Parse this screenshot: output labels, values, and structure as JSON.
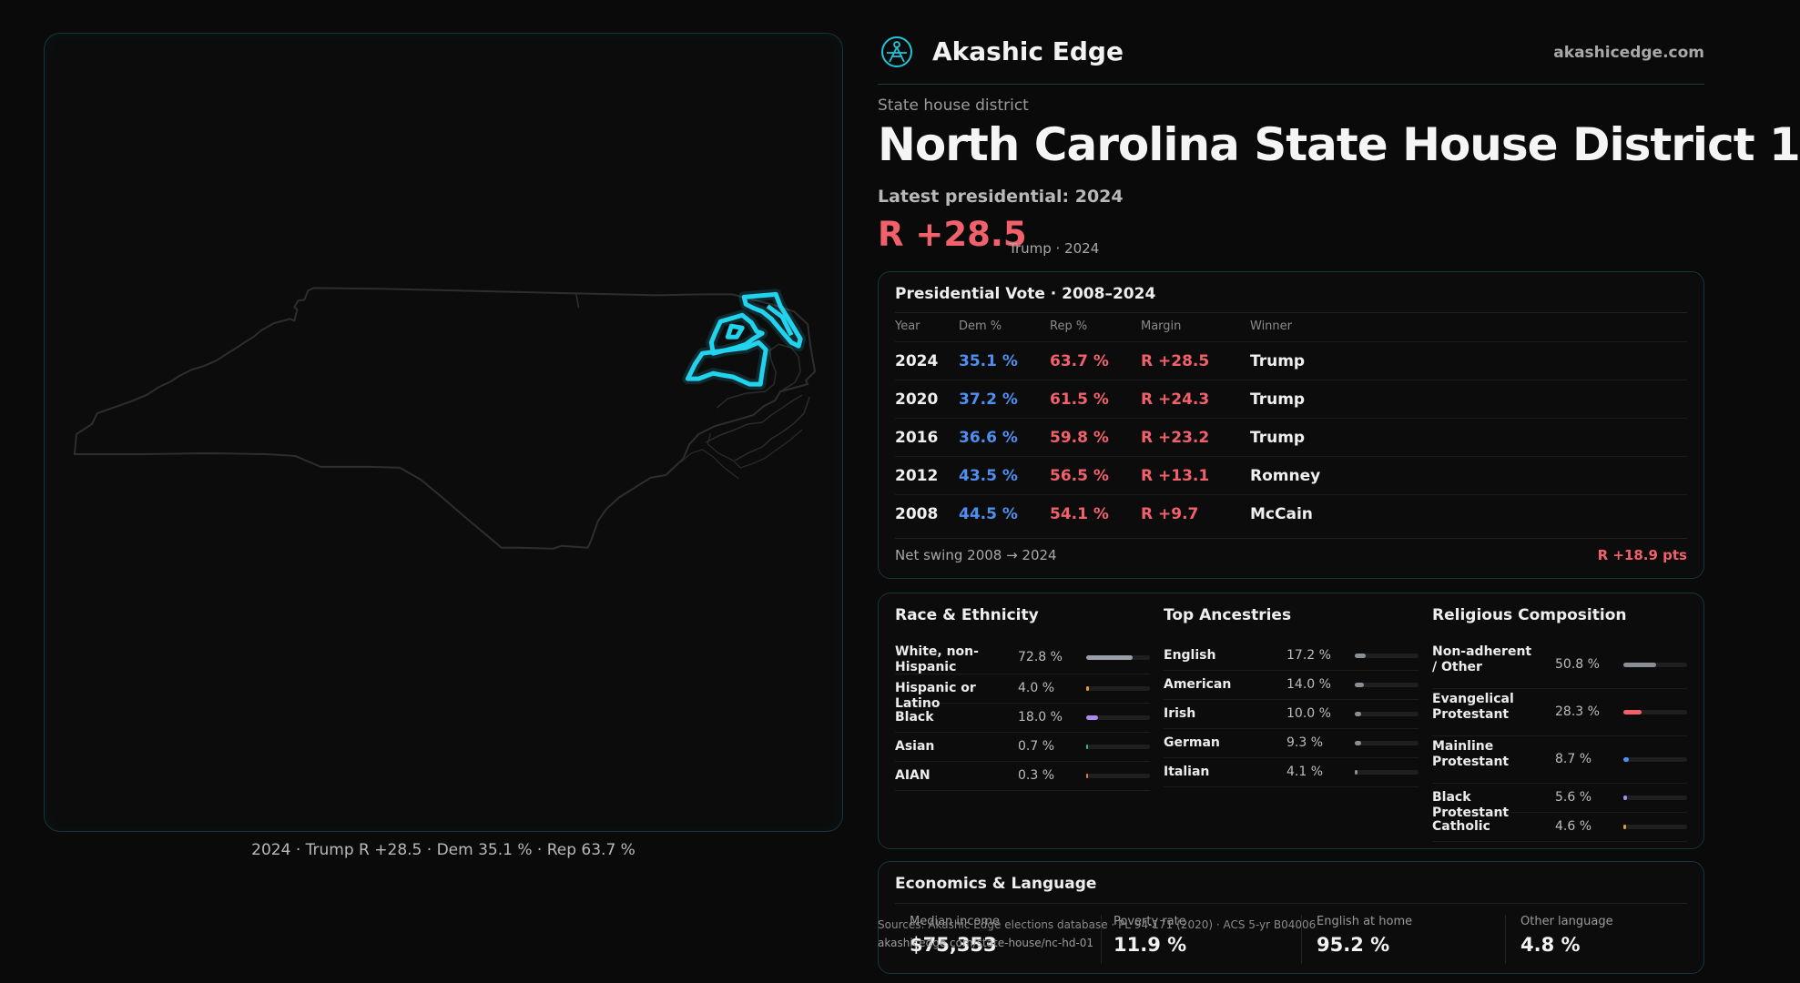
{
  "brand": {
    "name": "Akashic Edge",
    "domain": "akashicedge.com",
    "logo_icon": "akashic-edge-logo-icon"
  },
  "page": {
    "kicker": "State house district",
    "title": "North Carolina State House District 1",
    "latest_label": "Latest presidential: 2024",
    "margin": "R +28.5",
    "margin_sub": "Trump · 2024"
  },
  "map": {
    "caption": "2024 · Trump R +28.5 · Dem 35.1 % · Rep 63.7 %",
    "highlight_color": "#22d3ee"
  },
  "presidential": {
    "title": "Presidential Vote · 2008–2024",
    "headers": {
      "year": "Year",
      "dem": "Dem %",
      "rep": "Rep %",
      "margin": "Margin",
      "winner": "Winner"
    },
    "rows": [
      {
        "year": "2024",
        "dem": "35.1 %",
        "rep": "63.7 %",
        "margin": "R +28.5",
        "winner": "Trump"
      },
      {
        "year": "2020",
        "dem": "37.2 %",
        "rep": "61.5 %",
        "margin": "R +24.3",
        "winner": "Trump"
      },
      {
        "year": "2016",
        "dem": "36.6 %",
        "rep": "59.8 %",
        "margin": "R +23.2",
        "winner": "Trump"
      },
      {
        "year": "2012",
        "dem": "43.5 %",
        "rep": "56.5 %",
        "margin": "R +13.1",
        "winner": "Romney"
      },
      {
        "year": "2008",
        "dem": "44.5 %",
        "rep": "54.1 %",
        "margin": "R +9.7",
        "winner": "McCain"
      }
    ],
    "swing_label": "Net swing 2008 → 2024",
    "swing_value": "R +18.9 pts"
  },
  "race": {
    "title": "Race & Ethnicity",
    "items": [
      {
        "label": "White, non-Hispanic",
        "pct": "72.8 %",
        "value": 72.8,
        "color": "#9aa0a8"
      },
      {
        "label": "Hispanic or Latino",
        "pct": "4.0 %",
        "value": 4.0,
        "color": "#e0a030"
      },
      {
        "label": "Black",
        "pct": "18.0 %",
        "value": 18.0,
        "color": "#a98af0"
      },
      {
        "label": "Asian",
        "pct": "0.7 %",
        "value": 0.7,
        "color": "#2bb59a"
      },
      {
        "label": "AIAN",
        "pct": "0.3 %",
        "value": 0.3,
        "color": "#e07a50"
      }
    ]
  },
  "ancestry": {
    "title": "Top Ancestries",
    "items": [
      {
        "label": "English",
        "pct": "17.2 %",
        "value": 17.2,
        "color": "#8a8f96"
      },
      {
        "label": "American",
        "pct": "14.0 %",
        "value": 14.0,
        "color": "#8a8f96"
      },
      {
        "label": "Irish",
        "pct": "10.0 %",
        "value": 10.0,
        "color": "#8a8f96"
      },
      {
        "label": "German",
        "pct": "9.3 %",
        "value": 9.3,
        "color": "#8a8f96"
      },
      {
        "label": "Italian",
        "pct": "4.1 %",
        "value": 4.1,
        "color": "#8a8f96"
      }
    ]
  },
  "religion": {
    "title": "Religious Composition",
    "items": [
      {
        "label": "Non-adherent / Other",
        "pct": "50.8 %",
        "value": 50.8,
        "color": "#8a8f96"
      },
      {
        "label": "Evangelical Protestant",
        "pct": "28.3 %",
        "value": 28.3,
        "color": "#f0616b"
      },
      {
        "label": "Mainline Protestant",
        "pct": "8.7 %",
        "value": 8.7,
        "color": "#4f8ff0"
      },
      {
        "label": "Black Protestant",
        "pct": "5.6 %",
        "value": 5.6,
        "color": "#a98af0"
      },
      {
        "label": "Catholic",
        "pct": "4.6 %",
        "value": 4.6,
        "color": "#e0a030"
      }
    ]
  },
  "economics": {
    "title": "Economics & Language",
    "stats": [
      {
        "label": "Median income",
        "value": "$75,353"
      },
      {
        "label": "Poverty rate",
        "value": "11.9 %"
      },
      {
        "label": "English at home",
        "value": "95.2 %"
      },
      {
        "label": "Other language",
        "value": "4.8 %"
      }
    ]
  },
  "source": {
    "text": "Sources: Akashic Edge elections database · PL 94-171 (2020) · ACS 5-yr B04006",
    "url": "akashicedge.com/state-house/nc-hd-01"
  }
}
